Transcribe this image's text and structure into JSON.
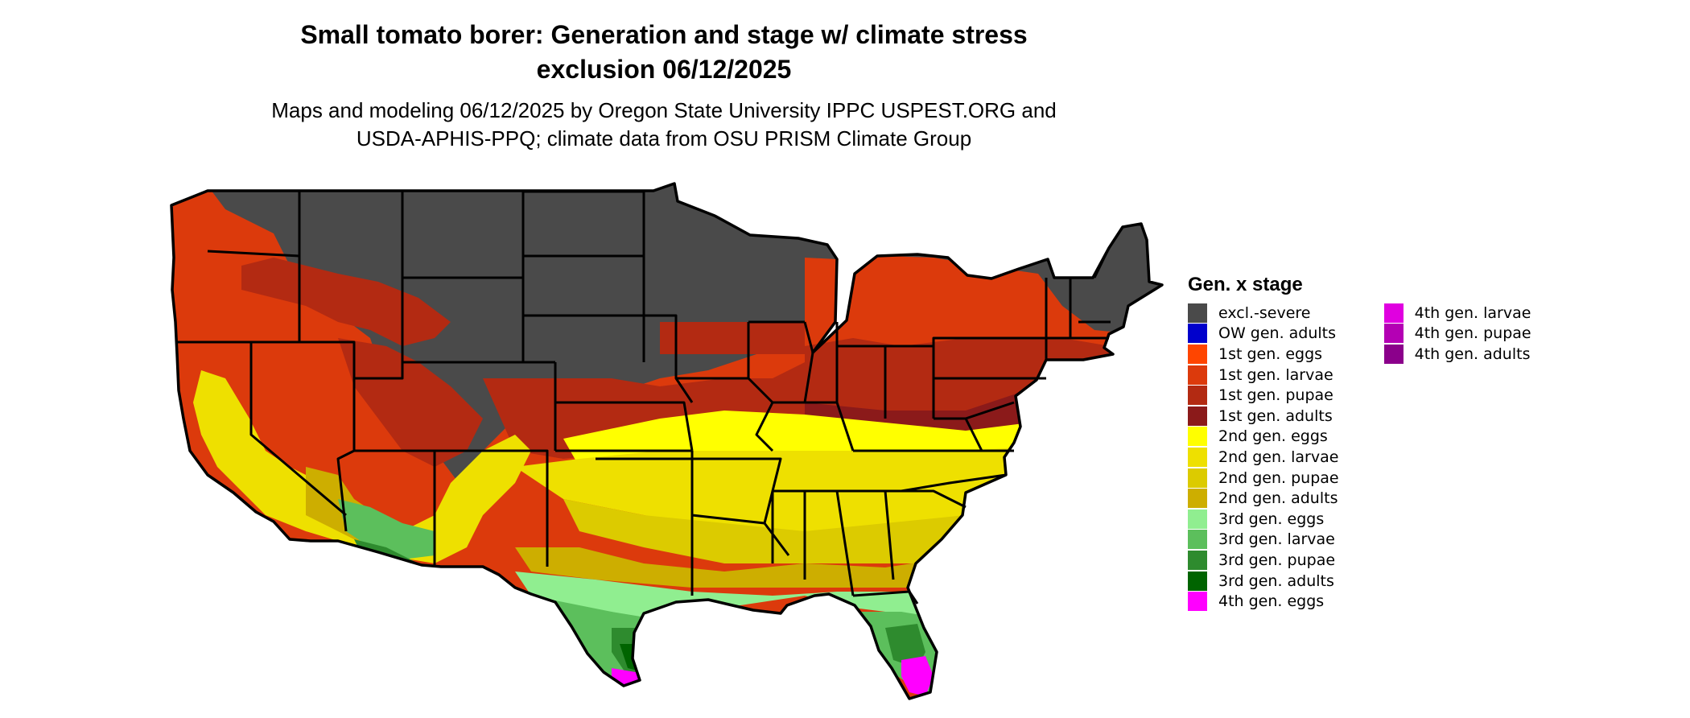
{
  "title_line1": "Small tomato borer: Generation and stage w/ climate stress",
  "title_line2": "exclusion 06/12/2025",
  "subtitle_line1": "Maps and modeling 06/12/2025 by Oregon State University IPPC USPEST.ORG and",
  "subtitle_line2": "USDA-APHIS-PPQ; climate data from OSU PRISM Climate Group",
  "legend": {
    "title": "Gen. x stage",
    "items": [
      {
        "label": "excl.-severe",
        "color": "#4a4a4a"
      },
      {
        "label": "OW gen. adults",
        "color": "#0000cc"
      },
      {
        "label": "1st gen. eggs",
        "color": "#ff4500"
      },
      {
        "label": "1st gen. larvae",
        "color": "#dc3a0c"
      },
      {
        "label": "1st gen. pupae",
        "color": "#b32a12"
      },
      {
        "label": "1st gen. adults",
        "color": "#8b1a1a"
      },
      {
        "label": "2nd gen. eggs",
        "color": "#ffff00"
      },
      {
        "label": "2nd gen. larvae",
        "color": "#eee000"
      },
      {
        "label": "2nd gen. pupae",
        "color": "#dccb00"
      },
      {
        "label": "2nd gen. adults",
        "color": "#cdae00"
      },
      {
        "label": "3rd gen. eggs",
        "color": "#90ee90"
      },
      {
        "label": "3rd gen. larvae",
        "color": "#5cbf5c"
      },
      {
        "label": "3rd gen. pupae",
        "color": "#2e8b2e"
      },
      {
        "label": "3rd gen. adults",
        "color": "#006400"
      },
      {
        "label": "4th gen. eggs",
        "color": "#ff00ff"
      },
      {
        "label": "4th gen. larvae",
        "color": "#e000e0"
      },
      {
        "label": "4th gen. pupae",
        "color": "#b400b4"
      },
      {
        "label": "4th gen. adults",
        "color": "#8b008b"
      }
    ]
  }
}
